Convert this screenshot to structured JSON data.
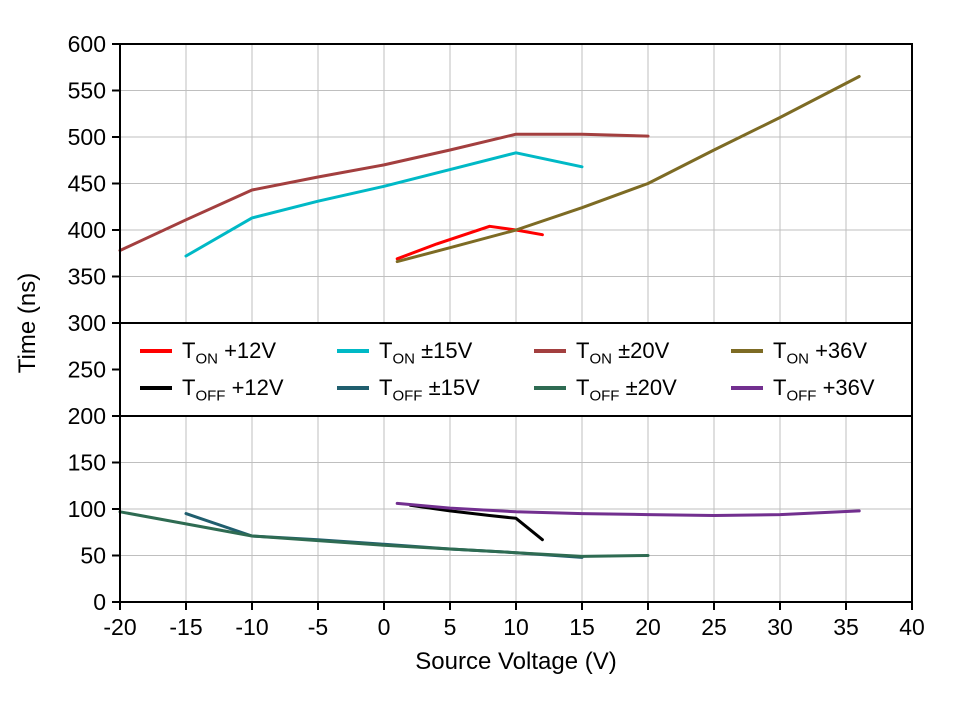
{
  "chart_data": {
    "type": "line",
    "title": "",
    "xlabel": "Source Voltage (V)",
    "ylabel": "Time (ns)",
    "xlim": [
      -20,
      40
    ],
    "ylim": [
      0,
      600
    ],
    "x_ticks": [
      -20,
      -15,
      -10,
      -5,
      0,
      5,
      10,
      15,
      20,
      25,
      30,
      35,
      40
    ],
    "y_ticks": [
      0,
      50,
      100,
      150,
      200,
      250,
      300,
      350,
      400,
      450,
      500,
      550,
      600
    ],
    "grid": true,
    "grid_color": "#BFBFBF",
    "border_color": "#000000",
    "legend_position": "horizontal band inside plot between y=200 and y=300",
    "legend_band_y": [
      200,
      300
    ],
    "series": [
      {
        "name": "T_ON +12V",
        "label_prefix": "T",
        "label_sub": "ON",
        "label_rest": " +12V",
        "color": "#FF0000",
        "points": [
          [
            1,
            369
          ],
          [
            4,
            385
          ],
          [
            8,
            404
          ],
          [
            10,
            400
          ],
          [
            12,
            395
          ]
        ]
      },
      {
        "name": "T_ON ±15V",
        "label_prefix": "T",
        "label_sub": "ON",
        "label_rest": " ±15V",
        "color": "#00B9C6",
        "points": [
          [
            -15,
            372
          ],
          [
            -10,
            413
          ],
          [
            -5,
            431
          ],
          [
            0,
            447
          ],
          [
            5,
            465
          ],
          [
            10,
            483
          ],
          [
            15,
            468
          ]
        ]
      },
      {
        "name": "T_ON ±20V",
        "label_prefix": "T",
        "label_sub": "ON",
        "label_rest": " ±20V",
        "color": "#A33F3F",
        "points": [
          [
            -20,
            378
          ],
          [
            -15,
            411
          ],
          [
            -10,
            443
          ],
          [
            -5,
            457
          ],
          [
            0,
            470
          ],
          [
            5,
            486
          ],
          [
            10,
            503
          ],
          [
            15,
            503
          ],
          [
            20,
            501
          ]
        ]
      },
      {
        "name": "T_ON +36V",
        "label_prefix": "T",
        "label_sub": "ON",
        "label_rest": " +36V",
        "color": "#7D6B24",
        "points": [
          [
            1,
            366
          ],
          [
            5,
            381
          ],
          [
            10,
            400
          ],
          [
            15,
            424
          ],
          [
            20,
            450
          ],
          [
            25,
            486
          ],
          [
            30,
            521
          ],
          [
            36,
            565
          ]
        ]
      },
      {
        "name": "T_OFF +12V",
        "label_prefix": "T",
        "label_sub": "OFF",
        "label_rest": " +12V",
        "color": "#000000",
        "points": [
          [
            2,
            104
          ],
          [
            5,
            98
          ],
          [
            8,
            93
          ],
          [
            10,
            90
          ],
          [
            12,
            67
          ]
        ]
      },
      {
        "name": "T_OFF ±15V",
        "label_prefix": "T",
        "label_sub": "OFF",
        "label_rest": " ±15V",
        "color": "#205E6E",
        "points": [
          [
            -15,
            95
          ],
          [
            -10,
            71
          ],
          [
            -5,
            67
          ],
          [
            0,
            62
          ],
          [
            5,
            57
          ],
          [
            10,
            53
          ],
          [
            15,
            48
          ]
        ]
      },
      {
        "name": "T_OFF ±20V",
        "label_prefix": "T",
        "label_sub": "OFF",
        "label_rest": " ±20V",
        "color": "#2E6B52",
        "points": [
          [
            -20,
            97
          ],
          [
            -15,
            84
          ],
          [
            -10,
            71
          ],
          [
            -5,
            66
          ],
          [
            0,
            61
          ],
          [
            5,
            57
          ],
          [
            10,
            53
          ],
          [
            15,
            49
          ],
          [
            20,
            50
          ]
        ]
      },
      {
        "name": "T_OFF +36V",
        "label_prefix": "T",
        "label_sub": "OFF",
        "label_rest": " +36V",
        "color": "#722F8F",
        "points": [
          [
            1,
            106
          ],
          [
            5,
            101
          ],
          [
            10,
            97
          ],
          [
            15,
            95
          ],
          [
            20,
            94
          ],
          [
            25,
            93
          ],
          [
            30,
            94
          ],
          [
            36,
            98
          ]
        ]
      }
    ]
  }
}
